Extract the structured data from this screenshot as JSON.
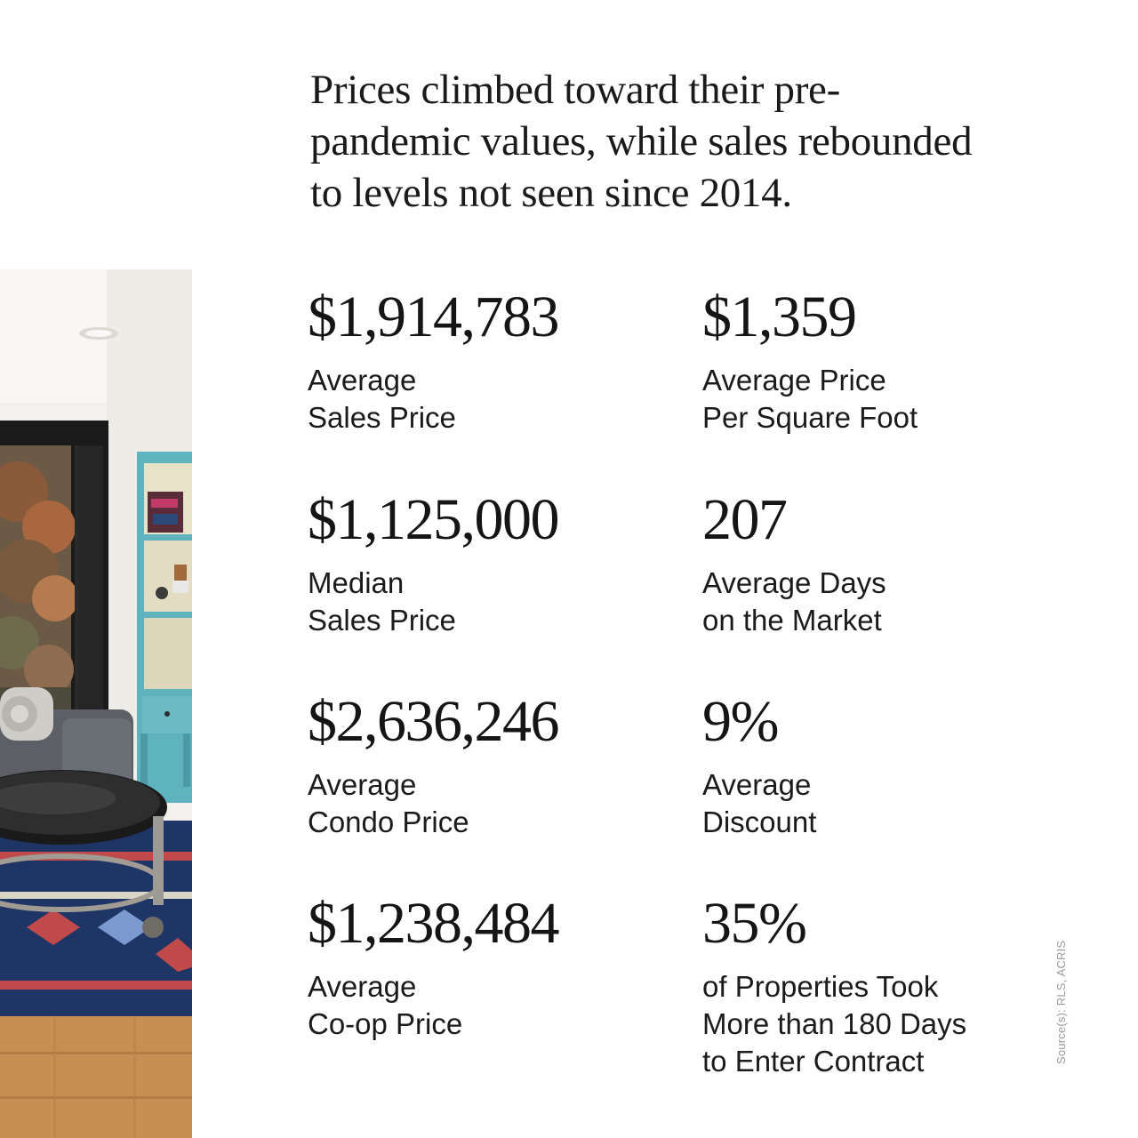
{
  "headline": {
    "lines": [
      "Prices climbed toward their pre-",
      "pandemic values, while sales rebounded",
      "to levels not seen since 2014."
    ]
  },
  "stats": [
    {
      "value": "$1,914,783",
      "label_lines": [
        "Average",
        "Sales Price"
      ]
    },
    {
      "value": "$1,359",
      "label_lines": [
        "Average Price",
        "Per Square  Foot"
      ]
    },
    {
      "value": "$1,125,000",
      "label_lines": [
        "Median",
        "Sales Price"
      ]
    },
    {
      "value": "207",
      "label_lines": [
        "Average Days",
        "on the Market"
      ]
    },
    {
      "value": "$2,636,246",
      "label_lines": [
        "Average",
        "Condo Price"
      ]
    },
    {
      "value": "9%",
      "label_lines": [
        "Average",
        "Discount"
      ]
    },
    {
      "value": "$1,238,484",
      "label_lines": [
        "Average",
        "Co-op Price"
      ]
    },
    {
      "value": "35%",
      "label_lines": [
        "of Properties Took",
        "More than 180 Days",
        "to Enter Contract"
      ]
    }
  ],
  "source": "Source(s): RLS, ACRIS",
  "colors": {
    "text": "#151515",
    "source_text": "#9a9a9a",
    "background": "#ffffff",
    "rug_blue": "#1f3566",
    "cabinet_turquoise": "#5fb3bf",
    "floor_wood": "#c98e52"
  },
  "photo": {
    "subject": "living room interior photo"
  }
}
